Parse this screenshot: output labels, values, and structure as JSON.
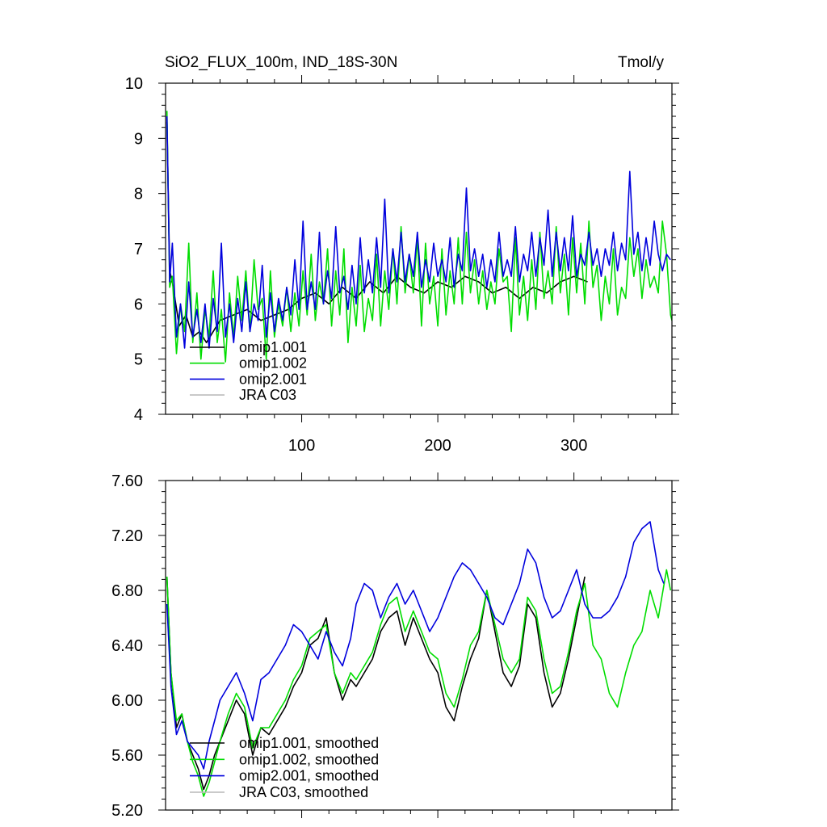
{
  "chart_data": [
    {
      "type": "line",
      "title": "SiO2_FLUX_100m, IND_18S-30N",
      "units": "Tmol/y",
      "xlim": [
        0,
        372
      ],
      "ylim": [
        4,
        10
      ],
      "xticks": [
        100,
        200,
        300
      ],
      "xtick_labels": [
        "100",
        "200",
        "300"
      ],
      "yticks": [
        4,
        5,
        6,
        7,
        8,
        9,
        10
      ],
      "ytick_labels": [
        "4",
        "5",
        "6",
        "7",
        "8",
        "9",
        "10"
      ],
      "grid": false,
      "legend_position": "bottom-left",
      "series": [
        {
          "name": "omip1.001",
          "color": "#000000",
          "x": [
            1,
            3,
            5,
            10,
            15,
            20,
            25,
            30,
            40,
            50,
            60,
            70,
            80,
            90,
            100,
            110,
            120,
            130,
            140,
            150,
            160,
            170,
            180,
            190,
            200,
            210,
            220,
            230,
            240,
            250,
            260,
            270,
            280,
            290,
            300,
            310
          ],
          "y": [
            9.3,
            6.6,
            6.4,
            5.6,
            5.8,
            5.4,
            5.5,
            5.3,
            5.7,
            5.8,
            5.9,
            5.7,
            5.8,
            5.9,
            6.1,
            6.2,
            6.0,
            6.3,
            6.1,
            6.4,
            6.2,
            6.5,
            6.3,
            6.2,
            6.4,
            6.3,
            6.5,
            6.4,
            6.2,
            6.3,
            6.1,
            6.3,
            6.2,
            6.4,
            6.5,
            6.4
          ]
        },
        {
          "name": "omip1.002",
          "color": "#00dd00",
          "x": [
            1,
            3,
            5,
            8,
            11,
            14,
            17,
            20,
            23,
            26,
            29,
            32,
            35,
            38,
            41,
            44,
            47,
            50,
            53,
            56,
            59,
            62,
            65,
            68,
            71,
            74,
            77,
            80,
            83,
            86,
            89,
            92,
            95,
            98,
            101,
            104,
            107,
            110,
            113,
            116,
            119,
            122,
            125,
            128,
            131,
            134,
            137,
            140,
            143,
            146,
            149,
            152,
            155,
            158,
            161,
            164,
            167,
            170,
            173,
            176,
            179,
            182,
            185,
            188,
            191,
            194,
            197,
            200,
            203,
            206,
            209,
            212,
            215,
            218,
            221,
            224,
            227,
            230,
            233,
            236,
            239,
            242,
            245,
            248,
            251,
            254,
            257,
            260,
            263,
            266,
            269,
            272,
            275,
            278,
            281,
            284,
            287,
            290,
            293,
            296,
            299,
            302,
            305,
            308,
            311,
            314,
            317,
            320,
            323,
            326,
            329,
            332,
            335,
            338,
            341,
            344,
            347,
            350,
            353,
            356,
            359,
            362,
            365,
            368,
            371,
            372
          ],
          "y": [
            9.5,
            6.3,
            6.5,
            5.1,
            6.0,
            5.5,
            7.1,
            5.3,
            6.2,
            5.0,
            5.9,
            5.4,
            6.6,
            5.3,
            5.9,
            4.95,
            6.2,
            5.4,
            6.5,
            5.7,
            6.6,
            5.5,
            6.8,
            5.9,
            6.1,
            5.0,
            6.6,
            5.4,
            6.0,
            5.6,
            6.3,
            5.5,
            6.2,
            5.6,
            6.6,
            5.8,
            6.9,
            5.7,
            6.4,
            6.0,
            7.0,
            5.6,
            6.6,
            5.8,
            7.0,
            5.3,
            6.3,
            5.6,
            6.7,
            5.5,
            6.1,
            5.7,
            6.9,
            5.6,
            6.6,
            5.9,
            7.0,
            6.0,
            7.4,
            6.2,
            6.9,
            6.2,
            7.2,
            5.6,
            7.1,
            6.0,
            6.5,
            5.6,
            7.0,
            5.8,
            6.6,
            6.0,
            7.2,
            6.0,
            7.3,
            6.2,
            6.8,
            6.0,
            6.6,
            5.9,
            6.4,
            6.0,
            7.0,
            6.4,
            6.5,
            5.5,
            7.2,
            5.8,
            6.5,
            5.7,
            6.8,
            5.9,
            7.3,
            6.1,
            6.6,
            6.0,
            7.4,
            6.2,
            6.9,
            5.8,
            7.2,
            6.2,
            7.1,
            6.0,
            7.5,
            6.3,
            6.7,
            5.7,
            6.5,
            6.0,
            7.0,
            5.8,
            6.3,
            6.1,
            7.2,
            6.5,
            7.0,
            6.1,
            6.8,
            6.3,
            6.5,
            6.2,
            7.5,
            6.9,
            5.8,
            5.7
          ]
        },
        {
          "name": "omip2.001",
          "color": "#0000dd",
          "x": [
            1,
            3,
            5,
            8,
            11,
            14,
            17,
            20,
            23,
            26,
            29,
            32,
            35,
            38,
            41,
            44,
            47,
            50,
            53,
            56,
            59,
            62,
            65,
            68,
            71,
            74,
            77,
            80,
            83,
            86,
            89,
            92,
            95,
            98,
            101,
            104,
            107,
            110,
            113,
            116,
            119,
            122,
            125,
            128,
            131,
            134,
            137,
            140,
            143,
            146,
            149,
            152,
            155,
            158,
            161,
            164,
            167,
            170,
            173,
            176,
            179,
            182,
            185,
            188,
            191,
            194,
            197,
            200,
            203,
            206,
            209,
            212,
            215,
            218,
            221,
            224,
            227,
            230,
            233,
            236,
            239,
            242,
            245,
            248,
            251,
            254,
            257,
            260,
            263,
            266,
            269,
            272,
            275,
            278,
            281,
            284,
            287,
            290,
            293,
            296,
            299,
            302,
            305,
            308,
            311,
            314,
            317,
            320,
            323,
            326,
            329,
            332,
            335,
            338,
            341,
            344,
            347,
            350,
            353,
            356,
            359,
            362,
            365,
            368,
            371
          ],
          "y": [
            9.4,
            6.4,
            7.1,
            5.4,
            6.0,
            5.2,
            6.4,
            5.4,
            5.9,
            5.3,
            6.0,
            5.2,
            6.1,
            5.5,
            7.1,
            5.4,
            6.0,
            5.3,
            6.1,
            5.5,
            6.4,
            5.5,
            6.0,
            5.7,
            6.7,
            5.4,
            6.2,
            5.5,
            6.1,
            5.7,
            6.3,
            5.8,
            6.8,
            5.9,
            7.5,
            5.9,
            6.4,
            5.9,
            7.3,
            6.0,
            6.6,
            6.1,
            7.4,
            6.2,
            6.5,
            5.9,
            6.7,
            6.0,
            7.2,
            6.2,
            6.8,
            6.2,
            7.2,
            6.3,
            7.9,
            6.2,
            7.0,
            6.4,
            7.3,
            6.4,
            6.9,
            6.5,
            7.3,
            6.3,
            6.8,
            6.4,
            7.1,
            6.5,
            6.8,
            6.4,
            7.2,
            6.3,
            6.9,
            6.6,
            8.1,
            6.6,
            7.0,
            6.5,
            6.9,
            6.3,
            6.8,
            6.4,
            7.3,
            6.5,
            6.8,
            6.5,
            7.4,
            6.4,
            6.9,
            6.6,
            7.3,
            6.5,
            7.2,
            6.7,
            7.7,
            6.5,
            7.3,
            6.6,
            7.2,
            6.6,
            7.6,
            6.5,
            6.9,
            6.7,
            7.3,
            6.7,
            7.0,
            6.5,
            7.0,
            6.7,
            7.3,
            6.6,
            7.1,
            6.8,
            8.4,
            6.9,
            7.3,
            6.6,
            7.2,
            6.7,
            7.5,
            6.9,
            6.6,
            6.9,
            6.8
          ]
        },
        {
          "name": "JRA C03",
          "color": "#bbbbbb",
          "x": [],
          "y": []
        }
      ]
    },
    {
      "type": "line",
      "title": "",
      "xlim": [
        0,
        372
      ],
      "ylim": [
        5.2,
        7.6
      ],
      "xticks": [
        100,
        200,
        300
      ],
      "yticks": [
        5.2,
        5.6,
        6.0,
        6.4,
        6.8,
        7.2,
        7.6
      ],
      "ytick_labels": [
        "5.20",
        "5.60",
        "6.00",
        "6.40",
        "6.80",
        "7.20",
        "7.60"
      ],
      "grid": false,
      "legend_position": "bottom-left",
      "series": [
        {
          "name": "omip1.001, smoothed",
          "color": "#000000",
          "x": [
            1,
            4,
            8,
            12,
            16,
            20,
            24,
            28,
            32,
            36,
            40,
            46,
            52,
            58,
            64,
            70,
            76,
            82,
            88,
            94,
            100,
            106,
            112,
            118,
            124,
            130,
            136,
            140,
            146,
            152,
            158,
            164,
            170,
            176,
            182,
            188,
            194,
            200,
            206,
            212,
            218,
            224,
            230,
            236,
            242,
            248,
            254,
            260,
            266,
            272,
            278,
            284,
            290,
            296,
            302,
            308
          ],
          "y": [
            6.9,
            6.2,
            5.8,
            5.9,
            5.7,
            5.6,
            5.5,
            5.35,
            5.45,
            5.6,
            5.7,
            5.85,
            6.0,
            5.9,
            5.6,
            5.8,
            5.75,
            5.85,
            5.95,
            6.1,
            6.2,
            6.4,
            6.45,
            6.6,
            6.2,
            6.0,
            6.15,
            6.1,
            6.2,
            6.3,
            6.5,
            6.6,
            6.65,
            6.4,
            6.6,
            6.45,
            6.3,
            6.2,
            5.95,
            5.85,
            6.1,
            6.3,
            6.45,
            6.8,
            6.5,
            6.2,
            6.1,
            6.25,
            6.7,
            6.6,
            6.2,
            5.95,
            6.05,
            6.3,
            6.6,
            6.9
          ]
        },
        {
          "name": "omip1.002, smoothed",
          "color": "#00dd00",
          "x": [
            1,
            4,
            8,
            12,
            16,
            20,
            24,
            28,
            32,
            36,
            40,
            46,
            52,
            58,
            64,
            70,
            76,
            82,
            88,
            94,
            100,
            106,
            112,
            118,
            124,
            130,
            136,
            140,
            146,
            152,
            158,
            164,
            170,
            176,
            182,
            188,
            194,
            200,
            206,
            212,
            218,
            224,
            230,
            236,
            242,
            248,
            254,
            260,
            266,
            272,
            278,
            284,
            290,
            296,
            302,
            308,
            314,
            320,
            326,
            332,
            338,
            344,
            350,
            356,
            362,
            368,
            371
          ],
          "y": [
            6.9,
            6.2,
            5.85,
            5.9,
            5.7,
            5.55,
            5.45,
            5.3,
            5.4,
            5.55,
            5.7,
            5.9,
            6.05,
            5.95,
            5.65,
            5.8,
            5.8,
            5.9,
            6.0,
            6.15,
            6.25,
            6.45,
            6.5,
            6.55,
            6.2,
            6.05,
            6.2,
            6.15,
            6.25,
            6.35,
            6.55,
            6.7,
            6.75,
            6.5,
            6.65,
            6.5,
            6.35,
            6.3,
            6.05,
            5.95,
            6.15,
            6.4,
            6.5,
            6.8,
            6.55,
            6.3,
            6.2,
            6.3,
            6.75,
            6.65,
            6.3,
            6.05,
            6.1,
            6.35,
            6.65,
            6.85,
            6.4,
            6.3,
            6.05,
            5.95,
            6.2,
            6.4,
            6.5,
            6.8,
            6.6,
            6.95,
            6.8
          ]
        },
        {
          "name": "omip2.001, smoothed",
          "color": "#0000dd",
          "x": [
            1,
            4,
            8,
            12,
            16,
            20,
            24,
            28,
            32,
            36,
            40,
            46,
            52,
            58,
            64,
            70,
            76,
            82,
            88,
            94,
            100,
            106,
            112,
            118,
            124,
            130,
            136,
            140,
            146,
            152,
            158,
            164,
            170,
            176,
            182,
            188,
            194,
            200,
            206,
            212,
            218,
            224,
            230,
            236,
            242,
            248,
            254,
            260,
            266,
            272,
            278,
            284,
            290,
            296,
            302,
            308,
            314,
            320,
            326,
            332,
            338,
            344,
            350,
            356,
            362,
            366
          ],
          "y": [
            6.7,
            6.1,
            5.75,
            5.85,
            5.7,
            5.65,
            5.6,
            5.5,
            5.7,
            5.85,
            6.0,
            6.1,
            6.2,
            6.05,
            5.85,
            6.15,
            6.2,
            6.3,
            6.4,
            6.55,
            6.5,
            6.4,
            6.3,
            6.5,
            6.35,
            6.25,
            6.45,
            6.7,
            6.85,
            6.8,
            6.6,
            6.75,
            6.85,
            6.7,
            6.8,
            6.65,
            6.5,
            6.6,
            6.75,
            6.9,
            7.0,
            6.95,
            6.85,
            6.75,
            6.6,
            6.55,
            6.7,
            6.85,
            7.1,
            7.0,
            6.75,
            6.6,
            6.65,
            6.8,
            6.95,
            6.7,
            6.6,
            6.6,
            6.65,
            6.75,
            6.9,
            7.15,
            7.25,
            7.3,
            6.95,
            6.85
          ]
        },
        {
          "name": "JRA C03, smoothed",
          "color": "#bbbbbb",
          "x": [],
          "y": []
        }
      ]
    }
  ],
  "top_plot": {
    "title": "SiO2_FLUX_100m, IND_18S-30N",
    "units": "Tmol/y"
  }
}
